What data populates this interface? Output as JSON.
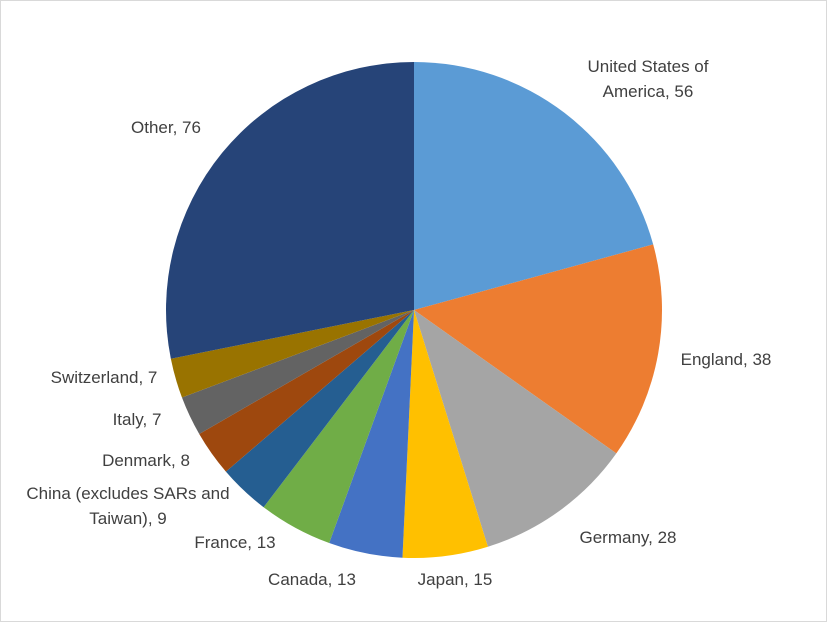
{
  "chart_data": {
    "type": "pie",
    "title": "",
    "start_angle_deg": 0,
    "direction": "clockwise",
    "slices": [
      {
        "label": "United States of America",
        "value": 56,
        "color": "#5b9bd5",
        "text_lines": [
          "United States of",
          "America, 56"
        ]
      },
      {
        "label": "England",
        "value": 38,
        "color": "#ed7d31",
        "text_lines": [
          "England, 38"
        ]
      },
      {
        "label": "Germany",
        "value": 28,
        "color": "#a5a5a5",
        "text_lines": [
          "Germany, 28"
        ]
      },
      {
        "label": "Japan",
        "value": 15,
        "color": "#ffc000",
        "text_lines": [
          "Japan, 15"
        ]
      },
      {
        "label": "Canada",
        "value": 13,
        "color": "#4472c4",
        "text_lines": [
          "Canada, 13"
        ]
      },
      {
        "label": "France",
        "value": 13,
        "color": "#70ad47",
        "text_lines": [
          "France, 13"
        ]
      },
      {
        "label": "China (excludes SARs and Taiwan)",
        "value": 9,
        "color": "#255e91",
        "text_lines": [
          "China (excludes SARs and",
          "Taiwan), 9"
        ]
      },
      {
        "label": "Denmark",
        "value": 8,
        "color": "#9e480e",
        "text_lines": [
          "Denmark, 8"
        ]
      },
      {
        "label": "Italy",
        "value": 7,
        "color": "#636363",
        "text_lines": [
          "Italy, 7"
        ]
      },
      {
        "label": "Switzerland",
        "value": 7,
        "color": "#997300",
        "text_lines": [
          "Switzerland, 7"
        ]
      },
      {
        "label": "Other",
        "value": 76,
        "color": "#264478",
        "text_lines": [
          "Other, 76"
        ]
      }
    ]
  }
}
